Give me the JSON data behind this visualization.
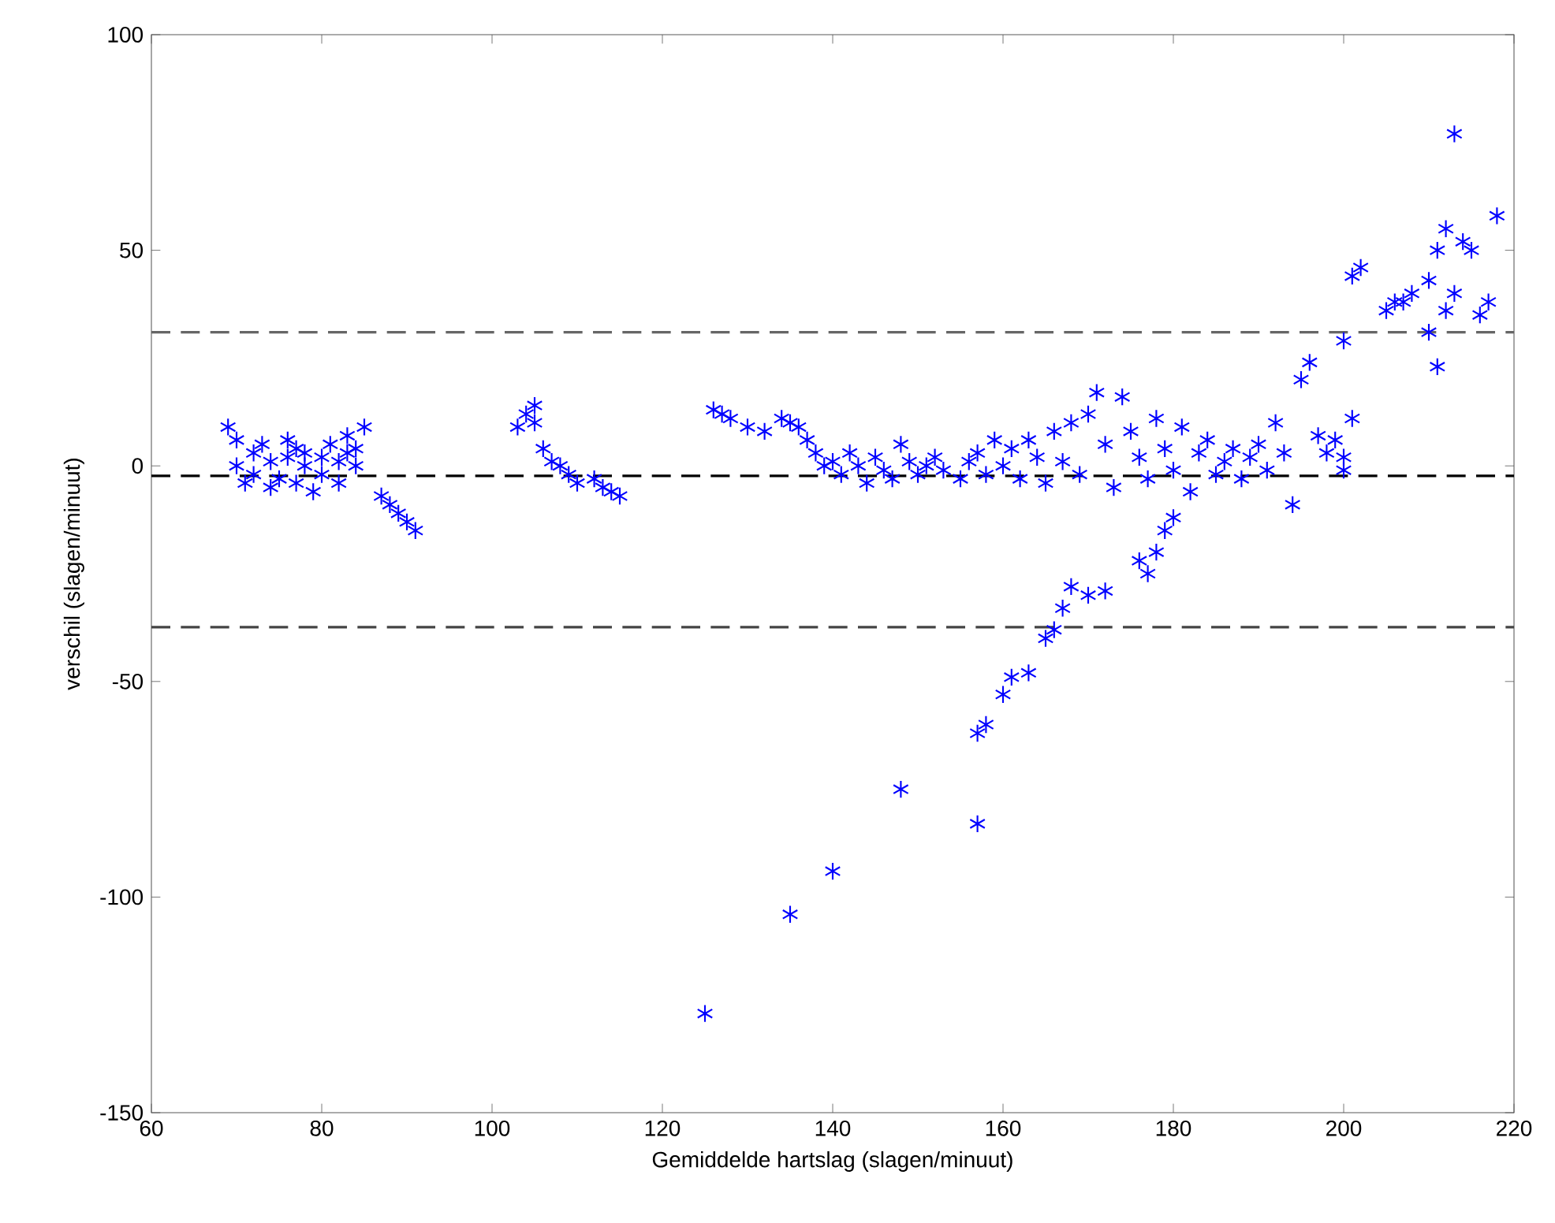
{
  "chart_data": {
    "type": "scatter",
    "xlabel": "Gemiddelde hartslag (slagen/minuut)",
    "ylabel": "verschil (slagen/minuut)",
    "xlim": [
      60,
      220
    ],
    "ylim": [
      -150,
      100
    ],
    "xticks": [
      60,
      80,
      100,
      120,
      140,
      160,
      180,
      200,
      220
    ],
    "yticks": [
      -150,
      -100,
      -50,
      0,
      50,
      100
    ],
    "grid": false,
    "marker": "cross",
    "ref_lines": [
      {
        "axis": "y",
        "value": 31,
        "color": "#666666",
        "line_style": "dashed"
      },
      {
        "axis": "y",
        "value": -2.3,
        "color": "#000000",
        "line_style": "dashed"
      },
      {
        "axis": "y",
        "value": -37.4,
        "color": "#444444",
        "line_style": "dashed"
      }
    ],
    "series": [
      {
        "color": "#0000ff",
        "x": [
          69,
          70,
          70,
          71,
          72,
          72,
          73,
          74,
          74,
          75,
          76,
          76,
          77,
          77,
          78,
          78,
          79,
          80,
          80,
          81,
          82,
          82,
          83,
          83,
          84,
          85,
          84,
          87,
          88,
          89,
          90,
          91,
          103,
          104,
          105,
          105,
          106,
          107,
          108,
          109,
          110,
          112,
          113,
          114,
          115,
          126,
          127,
          128,
          130,
          132,
          134,
          135,
          136,
          137,
          138,
          139,
          140,
          141,
          142,
          143,
          144,
          145,
          146,
          147,
          148,
          149,
          150,
          151,
          152,
          153,
          155,
          156,
          157,
          158,
          159,
          160,
          161,
          162,
          163,
          164,
          165,
          166,
          167,
          168,
          169,
          170,
          171,
          172,
          173,
          174,
          175,
          176,
          177,
          178,
          179,
          180,
          181,
          182,
          183,
          184,
          185,
          186,
          187,
          188,
          189,
          190,
          191,
          192,
          193,
          194,
          195,
          196,
          197,
          198,
          199,
          200,
          201,
          200,
          180,
          179,
          178,
          177,
          176,
          172,
          170,
          168,
          167,
          166,
          165,
          163,
          161,
          160,
          158,
          157,
          157,
          148,
          140,
          135,
          125,
          200,
          201,
          202,
          205,
          206,
          207,
          208,
          210,
          210,
          211,
          211,
          212,
          213,
          212,
          214,
          215,
          216,
          213,
          217,
          218
        ],
        "values": [
          9,
          6,
          0,
          -4,
          3,
          -2,
          5,
          -5,
          1,
          -3,
          6,
          2,
          4,
          -4,
          0,
          3,
          -6,
          2,
          -2,
          5,
          1,
          -4,
          3,
          7,
          4,
          9,
          0,
          -7,
          -9,
          -11,
          -13,
          -15,
          9,
          12,
          14,
          10,
          4,
          1,
          0,
          -2,
          -4,
          -3,
          -5,
          -6,
          -7,
          13,
          12,
          11,
          9,
          8,
          11,
          10,
          9,
          6,
          3,
          0,
          1,
          -2,
          3,
          0,
          -4,
          2,
          -1,
          -3,
          5,
          1,
          -2,
          0,
          2,
          -1,
          -3,
          1,
          3,
          -2,
          6,
          0,
          4,
          -3,
          6,
          2,
          -4,
          8,
          1,
          10,
          -2,
          12,
          17,
          5,
          -5,
          16,
          8,
          2,
          -3,
          11,
          4,
          -1,
          9,
          -6,
          3,
          6,
          -2,
          1,
          4,
          -3,
          2,
          5,
          -1,
          10,
          3,
          -9,
          20,
          24,
          7,
          3,
          6,
          2,
          11,
          -1,
          -12,
          -15,
          -20,
          -25,
          -22,
          -29,
          -30,
          -28,
          -33,
          -38,
          -40,
          -48,
          -49,
          -53,
          -60,
          -62,
          -83,
          -75,
          -94,
          -104,
          -127,
          29,
          44,
          46,
          36,
          38,
          38,
          40,
          31,
          43,
          23,
          50,
          36,
          40,
          55,
          52,
          50,
          35,
          77,
          38,
          58
        ]
      }
    ]
  }
}
